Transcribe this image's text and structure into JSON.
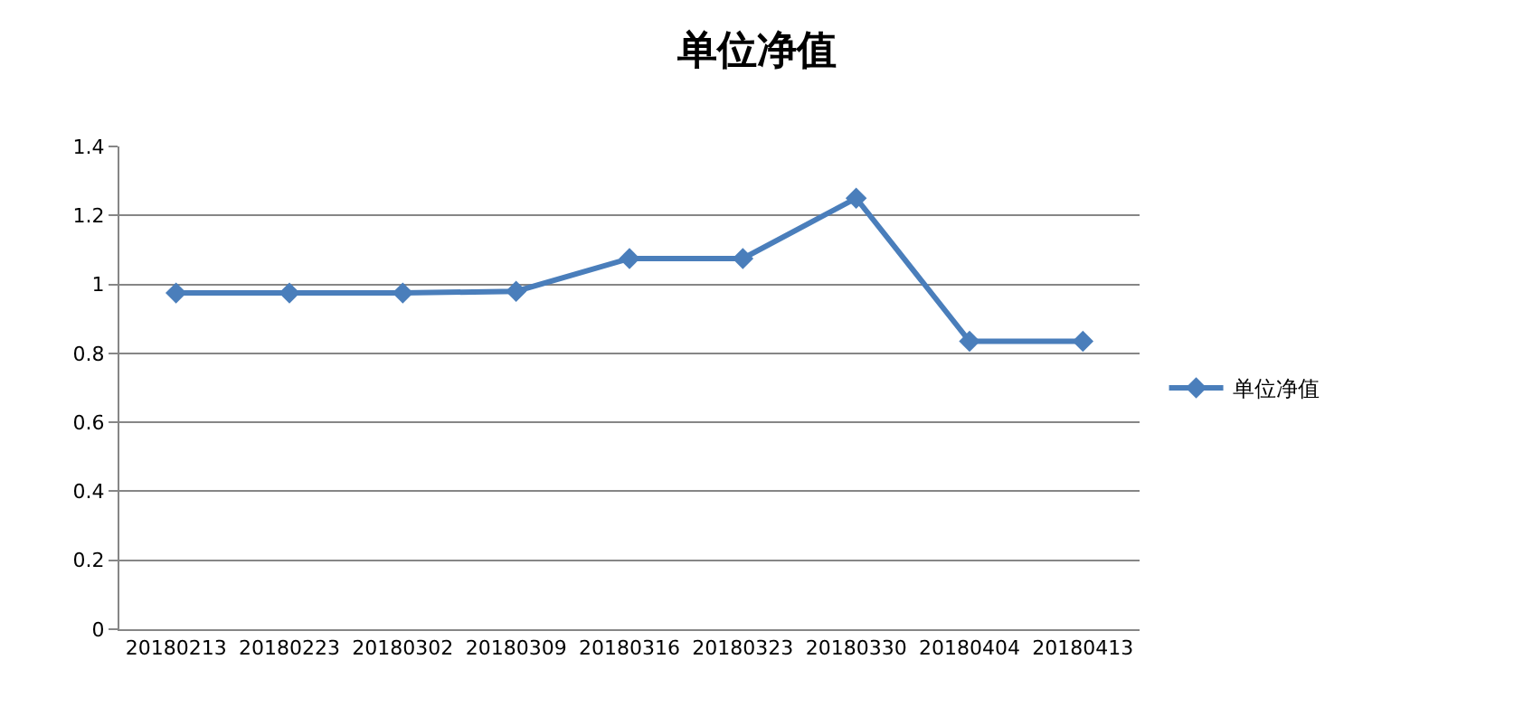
{
  "chart_data": {
    "type": "line",
    "title": "单位净值",
    "categories": [
      "20180213",
      "20180223",
      "20180302",
      "20180309",
      "20180316",
      "20180323",
      "20180330",
      "20180404",
      "20180413"
    ],
    "series": [
      {
        "name": "单位净值",
        "color": "#4a7ebb",
        "values": [
          0.975,
          0.975,
          0.975,
          0.98,
          1.075,
          1.075,
          1.25,
          0.835,
          0.835
        ]
      }
    ],
    "ylim": [
      0,
      1.4
    ],
    "yticks": [
      0,
      0.2,
      0.4,
      0.6,
      0.8,
      1,
      1.2,
      1.4
    ],
    "grid": "y",
    "legend": "right",
    "marker": "diamond",
    "line_style": "solid"
  }
}
